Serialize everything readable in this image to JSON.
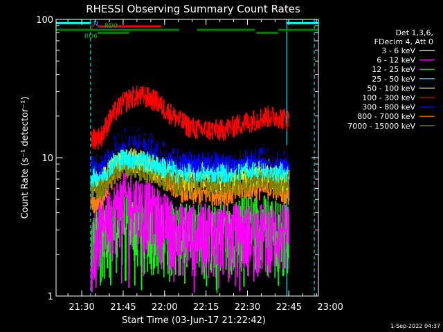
{
  "chart_data": {
    "type": "line",
    "title": "RHESSI Observing Summary Count Rates",
    "xlabel": "Start Time (03-Jun-17 21:22:42)",
    "ylabel": "Count Rate (s⁻¹ detector⁻¹)",
    "yscale": "log",
    "ylim": [
      1,
      100
    ],
    "xlim_minutes_since_start": [
      -2,
      93
    ],
    "x_ticks": [
      {
        "label": "21:30",
        "t": 7.3
      },
      {
        "label": "21:45",
        "t": 22.3
      },
      {
        "label": "22:00",
        "t": 37.3
      },
      {
        "label": "22:15",
        "t": 52.3
      },
      {
        "label": "22:30",
        "t": 67.3
      },
      {
        "label": "22:45",
        "t": 82.3
      },
      {
        "label": "23:00",
        "t": 97.3
      }
    ],
    "y_ticks": [
      {
        "label": "100",
        "value": 100
      },
      {
        "label": "10",
        "value": 10
      },
      {
        "label": "1",
        "value": 1
      }
    ],
    "legend_header": [
      "Det 1,3,6,",
      "FDecim 4, Att 0"
    ],
    "legend_position": "right",
    "series": [
      {
        "name": "3 - 6 keV",
        "color": "#000000",
        "values": [
          [
            10.5,
            11
          ],
          [
            14,
            11
          ],
          [
            18,
            13
          ],
          [
            22,
            15
          ],
          [
            26,
            15
          ],
          [
            30,
            14
          ],
          [
            34,
            13
          ],
          [
            38,
            12
          ],
          [
            42,
            11.5
          ],
          [
            46,
            11.5
          ],
          [
            50,
            11.5
          ],
          [
            54,
            11.5
          ],
          [
            58,
            11.5
          ],
          [
            62,
            11.5
          ],
          [
            66,
            12
          ],
          [
            70,
            12
          ],
          [
            74,
            11.5
          ],
          [
            78,
            11
          ],
          [
            82,
            11
          ]
        ]
      },
      {
        "name": "6 - 12 keV",
        "color": "#ff00ff",
        "values": [
          [
            10.5,
            2.5
          ],
          [
            14,
            3.5
          ],
          [
            18,
            4
          ],
          [
            22,
            5
          ],
          [
            26,
            5
          ],
          [
            30,
            4.5
          ],
          [
            34,
            4
          ],
          [
            38,
            3.5
          ],
          [
            42,
            3
          ],
          [
            46,
            3
          ],
          [
            50,
            3
          ],
          [
            54,
            3
          ],
          [
            58,
            3
          ],
          [
            62,
            3
          ],
          [
            66,
            3
          ],
          [
            70,
            3
          ],
          [
            74,
            3
          ],
          [
            78,
            3
          ],
          [
            82,
            3
          ]
        ]
      },
      {
        "name": "12 - 25 keV",
        "color": "#00ff00",
        "values": [
          [
            10.5,
            2.5
          ],
          [
            14,
            2.8
          ],
          [
            18,
            3
          ],
          [
            22,
            3.5
          ],
          [
            26,
            3.5
          ],
          [
            30,
            3.2
          ],
          [
            34,
            3
          ],
          [
            38,
            3
          ],
          [
            42,
            3
          ],
          [
            46,
            3
          ],
          [
            50,
            3
          ],
          [
            54,
            3.2
          ],
          [
            58,
            3.2
          ],
          [
            62,
            3
          ],
          [
            66,
            3.5
          ],
          [
            70,
            3.5
          ],
          [
            74,
            3.5
          ],
          [
            78,
            3.2
          ],
          [
            82,
            3
          ]
        ]
      },
      {
        "name": "25 - 50 keV",
        "color": "#00ffff",
        "values": [
          [
            10.5,
            7.5
          ],
          [
            14,
            7.5
          ],
          [
            18,
            9
          ],
          [
            22,
            10
          ],
          [
            26,
            10
          ],
          [
            30,
            9.5
          ],
          [
            34,
            9
          ],
          [
            38,
            8.5
          ],
          [
            42,
            8
          ],
          [
            46,
            8
          ],
          [
            50,
            8
          ],
          [
            54,
            8
          ],
          [
            58,
            8
          ],
          [
            62,
            8
          ],
          [
            66,
            8.5
          ],
          [
            70,
            8.5
          ],
          [
            74,
            8.5
          ],
          [
            78,
            8
          ],
          [
            82,
            8
          ]
        ]
      },
      {
        "name": "50 - 100 keV",
        "color": "#ffff00",
        "values": [
          [
            10.5,
            7
          ],
          [
            14,
            7
          ],
          [
            18,
            8.5
          ],
          [
            22,
            9.5
          ],
          [
            26,
            9.5
          ],
          [
            30,
            9
          ],
          [
            34,
            8
          ],
          [
            38,
            7.5
          ],
          [
            42,
            7
          ],
          [
            46,
            7
          ],
          [
            50,
            7
          ],
          [
            54,
            7
          ],
          [
            58,
            7
          ],
          [
            62,
            7
          ],
          [
            66,
            7
          ],
          [
            70,
            7.5
          ],
          [
            74,
            7.5
          ],
          [
            78,
            7
          ],
          [
            82,
            7
          ]
        ]
      },
      {
        "name": "100 - 300 keV",
        "color": "#ff0000",
        "values": [
          [
            10.5,
            14
          ],
          [
            14,
            14
          ],
          [
            18,
            20
          ],
          [
            22,
            25
          ],
          [
            26,
            28
          ],
          [
            30,
            28
          ],
          [
            34,
            26
          ],
          [
            38,
            22
          ],
          [
            42,
            19
          ],
          [
            46,
            17
          ],
          [
            50,
            16
          ],
          [
            54,
            16
          ],
          [
            58,
            16
          ],
          [
            62,
            17
          ],
          [
            66,
            18
          ],
          [
            70,
            19
          ],
          [
            74,
            20
          ],
          [
            78,
            20
          ],
          [
            82,
            19
          ]
        ]
      },
      {
        "name": "300 - 800 keV",
        "color": "#0000ff",
        "values": [
          [
            10.5,
            9
          ],
          [
            14,
            9
          ],
          [
            18,
            12
          ],
          [
            22,
            14
          ],
          [
            26,
            14
          ],
          [
            30,
            13.5
          ],
          [
            34,
            12
          ],
          [
            38,
            11
          ],
          [
            42,
            10
          ],
          [
            46,
            9.5
          ],
          [
            50,
            9.5
          ],
          [
            54,
            9.5
          ],
          [
            58,
            9.5
          ],
          [
            62,
            9.5
          ],
          [
            66,
            10
          ],
          [
            70,
            10
          ],
          [
            74,
            10
          ],
          [
            78,
            10
          ],
          [
            82,
            9.5
          ]
        ]
      },
      {
        "name": "800 - 7000 keV",
        "color": "#ff8000",
        "values": [
          [
            10.5,
            4.5
          ],
          [
            14,
            5
          ],
          [
            18,
            7
          ],
          [
            22,
            9
          ],
          [
            26,
            10
          ],
          [
            30,
            9.5
          ],
          [
            34,
            8
          ],
          [
            38,
            7
          ],
          [
            42,
            6
          ],
          [
            46,
            5.5
          ],
          [
            50,
            5.5
          ],
          [
            54,
            5.5
          ],
          [
            58,
            5.5
          ],
          [
            62,
            5.5
          ],
          [
            66,
            6
          ],
          [
            70,
            6
          ],
          [
            74,
            6
          ],
          [
            78,
            6
          ],
          [
            82,
            5.5
          ]
        ]
      },
      {
        "name": "7000 - 15000 keV",
        "color": "#808000",
        "values": [
          [
            10.5,
            6
          ],
          [
            14,
            6
          ],
          [
            18,
            7.5
          ],
          [
            22,
            8.5
          ],
          [
            26,
            8.5
          ],
          [
            30,
            8
          ],
          [
            34,
            7.5
          ],
          [
            38,
            7
          ],
          [
            42,
            6.5
          ],
          [
            46,
            6.5
          ],
          [
            50,
            6.5
          ],
          [
            54,
            6.5
          ],
          [
            58,
            6.5
          ],
          [
            62,
            6.5
          ],
          [
            66,
            6.5
          ],
          [
            70,
            7
          ],
          [
            74,
            7
          ],
          [
            78,
            6.5
          ],
          [
            82,
            6.5
          ]
        ]
      }
    ],
    "annotations": [
      {
        "label": "N",
        "color": "#00ffff",
        "y": 94,
        "segments": [
          [
            -2,
            10.5
          ],
          [
            81.5,
            93
          ]
        ]
      },
      {
        "label": "F",
        "color": "#ff0000",
        "y": 89,
        "segments": [
          [
            13,
            36
          ]
        ]
      },
      {
        "label": "RD0",
        "color": "#008000",
        "y": 84,
        "segments": [
          [
            -2,
            42.5
          ],
          [
            49,
            70
          ],
          [
            78.5,
            93
          ]
        ]
      },
      {
        "label": "RD6",
        "color": "#008000",
        "y": 80,
        "segments": [
          [
            13,
            24.5
          ],
          [
            70.5,
            78.5
          ]
        ]
      }
    ],
    "vertical_lines": [
      {
        "t": 10.5,
        "style": "dashed",
        "color": "#00ffff"
      },
      {
        "t": 81.5,
        "style": "solid",
        "color": "#00ffff"
      },
      {
        "t": 91.5,
        "style": "dashed",
        "color": "#00ffff"
      }
    ],
    "data_window": [
      10.5,
      82.5
    ]
  },
  "footer": {
    "timestamp": "1-Sep-2022 04:37"
  }
}
